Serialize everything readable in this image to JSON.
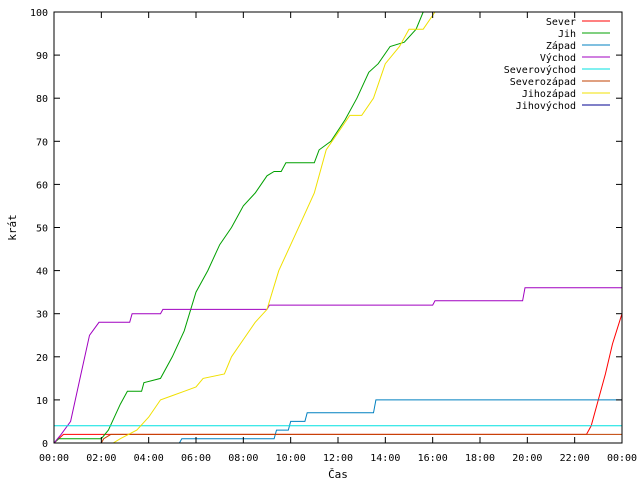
{
  "chart_data": {
    "type": "line",
    "xlabel": "Čas",
    "ylabel": "krát",
    "xlim": [
      0,
      24
    ],
    "ylim": [
      0,
      100
    ],
    "x_ticks": [
      "00:00",
      "02:00",
      "04:00",
      "06:00",
      "08:00",
      "10:00",
      "12:00",
      "14:00",
      "16:00",
      "18:00",
      "20:00",
      "22:00",
      "00:00"
    ],
    "y_ticks": [
      0,
      10,
      20,
      30,
      40,
      50,
      60,
      70,
      80,
      90,
      100
    ],
    "grid": false,
    "legend_position": "top-right",
    "series": [
      {
        "name": "Sever",
        "color": "#ff0000",
        "points": [
          [
            0,
            0
          ],
          [
            0.4,
            2
          ],
          [
            22.5,
            2
          ],
          [
            22.7,
            4
          ],
          [
            23.0,
            10
          ],
          [
            23.3,
            16
          ],
          [
            23.6,
            23
          ],
          [
            24,
            30
          ]
        ]
      },
      {
        "name": "Jih",
        "color": "#00a000",
        "points": [
          [
            0,
            0
          ],
          [
            0.2,
            1
          ],
          [
            2.0,
            1
          ],
          [
            2.3,
            3
          ],
          [
            2.8,
            9
          ],
          [
            3.1,
            12
          ],
          [
            3.7,
            12
          ],
          [
            3.8,
            14
          ],
          [
            4.5,
            15
          ],
          [
            5.0,
            20
          ],
          [
            5.5,
            26
          ],
          [
            6.0,
            35
          ],
          [
            6.5,
            40
          ],
          [
            7.0,
            46
          ],
          [
            7.5,
            50
          ],
          [
            8.0,
            55
          ],
          [
            8.5,
            58
          ],
          [
            9.0,
            62
          ],
          [
            9.3,
            63
          ],
          [
            9.6,
            63
          ],
          [
            9.8,
            65
          ],
          [
            11.0,
            65
          ],
          [
            11.2,
            68
          ],
          [
            11.7,
            70
          ],
          [
            12.3,
            75
          ],
          [
            12.8,
            80
          ],
          [
            13.3,
            86
          ],
          [
            13.7,
            88
          ],
          [
            14.2,
            92
          ],
          [
            14.8,
            93
          ],
          [
            15.3,
            96
          ],
          [
            15.6,
            100
          ]
        ]
      },
      {
        "name": "Západ",
        "color": "#0080c0",
        "points": [
          [
            0,
            0
          ],
          [
            0.2,
            0
          ],
          [
            5.3,
            0
          ],
          [
            5.4,
            1
          ],
          [
            9.3,
            1
          ],
          [
            9.4,
            3
          ],
          [
            9.9,
            3
          ],
          [
            10.0,
            5
          ],
          [
            10.6,
            5
          ],
          [
            10.7,
            7
          ],
          [
            13.5,
            7
          ],
          [
            13.6,
            10
          ],
          [
            24,
            10
          ]
        ]
      },
      {
        "name": "Východ",
        "color": "#a000c0",
        "points": [
          [
            0,
            0
          ],
          [
            0.3,
            2
          ],
          [
            0.7,
            5
          ],
          [
            1.1,
            15
          ],
          [
            1.5,
            25
          ],
          [
            1.9,
            28
          ],
          [
            3.2,
            28
          ],
          [
            3.3,
            30
          ],
          [
            4.5,
            30
          ],
          [
            4.6,
            31
          ],
          [
            9.0,
            31
          ],
          [
            9.1,
            32
          ],
          [
            16.0,
            32
          ],
          [
            16.1,
            33
          ],
          [
            19.8,
            33
          ],
          [
            19.9,
            36
          ],
          [
            24,
            36
          ]
        ]
      },
      {
        "name": "Severovýchod",
        "color": "#00e0e0",
        "points": [
          [
            0,
            4
          ],
          [
            24,
            4
          ]
        ]
      },
      {
        "name": "Severozápad",
        "color": "#c04000",
        "points": [
          [
            0,
            0
          ],
          [
            2.0,
            0
          ],
          [
            2.1,
            1
          ],
          [
            2.4,
            2
          ],
          [
            24,
            2
          ]
        ]
      },
      {
        "name": "Jihozápad",
        "color": "#f0e000",
        "points": [
          [
            0,
            0
          ],
          [
            2.5,
            0
          ],
          [
            2.8,
            1
          ],
          [
            3.5,
            3
          ],
          [
            4.0,
            6
          ],
          [
            4.5,
            10
          ],
          [
            5.0,
            11
          ],
          [
            5.5,
            12
          ],
          [
            6.0,
            13
          ],
          [
            6.3,
            15
          ],
          [
            7.2,
            16
          ],
          [
            7.5,
            20
          ],
          [
            8.0,
            24
          ],
          [
            8.5,
            28
          ],
          [
            9.0,
            31
          ],
          [
            9.5,
            40
          ],
          [
            10.0,
            46
          ],
          [
            10.5,
            52
          ],
          [
            11.0,
            58
          ],
          [
            11.5,
            68
          ],
          [
            12.0,
            72
          ],
          [
            12.5,
            76
          ],
          [
            13.0,
            76
          ],
          [
            13.5,
            80
          ],
          [
            14.0,
            88
          ],
          [
            14.6,
            92
          ],
          [
            15.0,
            96
          ],
          [
            15.6,
            96
          ],
          [
            16.1,
            100
          ]
        ]
      },
      {
        "name": "Jihovýchod",
        "color": "#000090",
        "points": [
          [
            0,
            0
          ],
          [
            24,
            0
          ]
        ]
      }
    ]
  }
}
